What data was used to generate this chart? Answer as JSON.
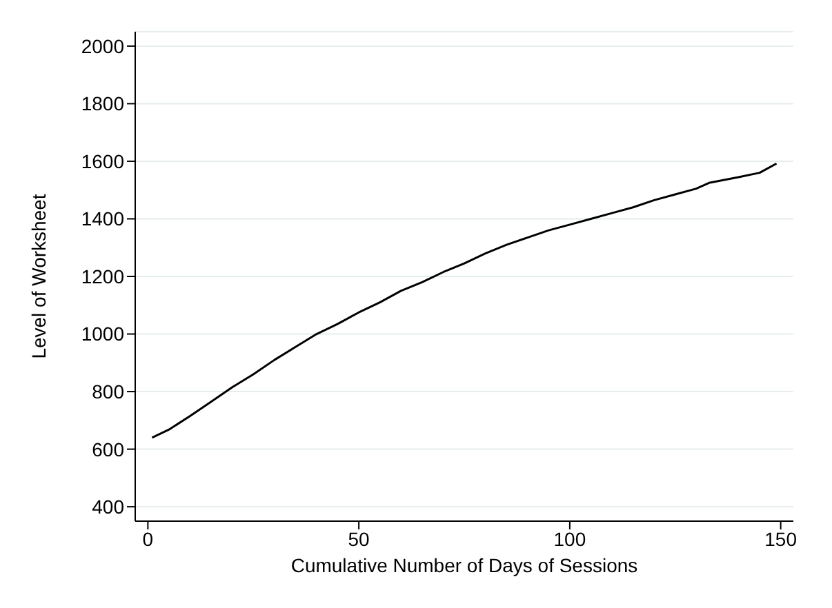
{
  "chart_data": {
    "type": "line",
    "xlabel": "Cumulative Number of Days of Sessions",
    "ylabel": "Level of Worksheet",
    "x": [
      1,
      5,
      10,
      15,
      20,
      25,
      30,
      35,
      40,
      45,
      50,
      55,
      60,
      65,
      70,
      75,
      80,
      85,
      90,
      95,
      100,
      105,
      110,
      115,
      120,
      125,
      130,
      133,
      140,
      145,
      149
    ],
    "series": [
      {
        "color": "#000000",
        "values": [
          640,
          668,
          715,
          765,
          815,
          860,
          910,
          955,
          1000,
          1035,
          1075,
          1110,
          1150,
          1180,
          1215,
          1245,
          1280,
          1310,
          1335,
          1360,
          1380,
          1400,
          1420,
          1440,
          1465,
          1485,
          1505,
          1525,
          1545,
          1560,
          1592
        ]
      }
    ],
    "xlim": [
      -3,
      153
    ],
    "xticks": [
      0,
      50,
      100,
      150
    ],
    "ylim": [
      350,
      2050
    ],
    "yticks": [
      400,
      600,
      800,
      1000,
      1200,
      1400,
      1600,
      1800,
      2000
    ],
    "grid": "y",
    "marker": "none",
    "line_style": "solid",
    "legend": false
  }
}
